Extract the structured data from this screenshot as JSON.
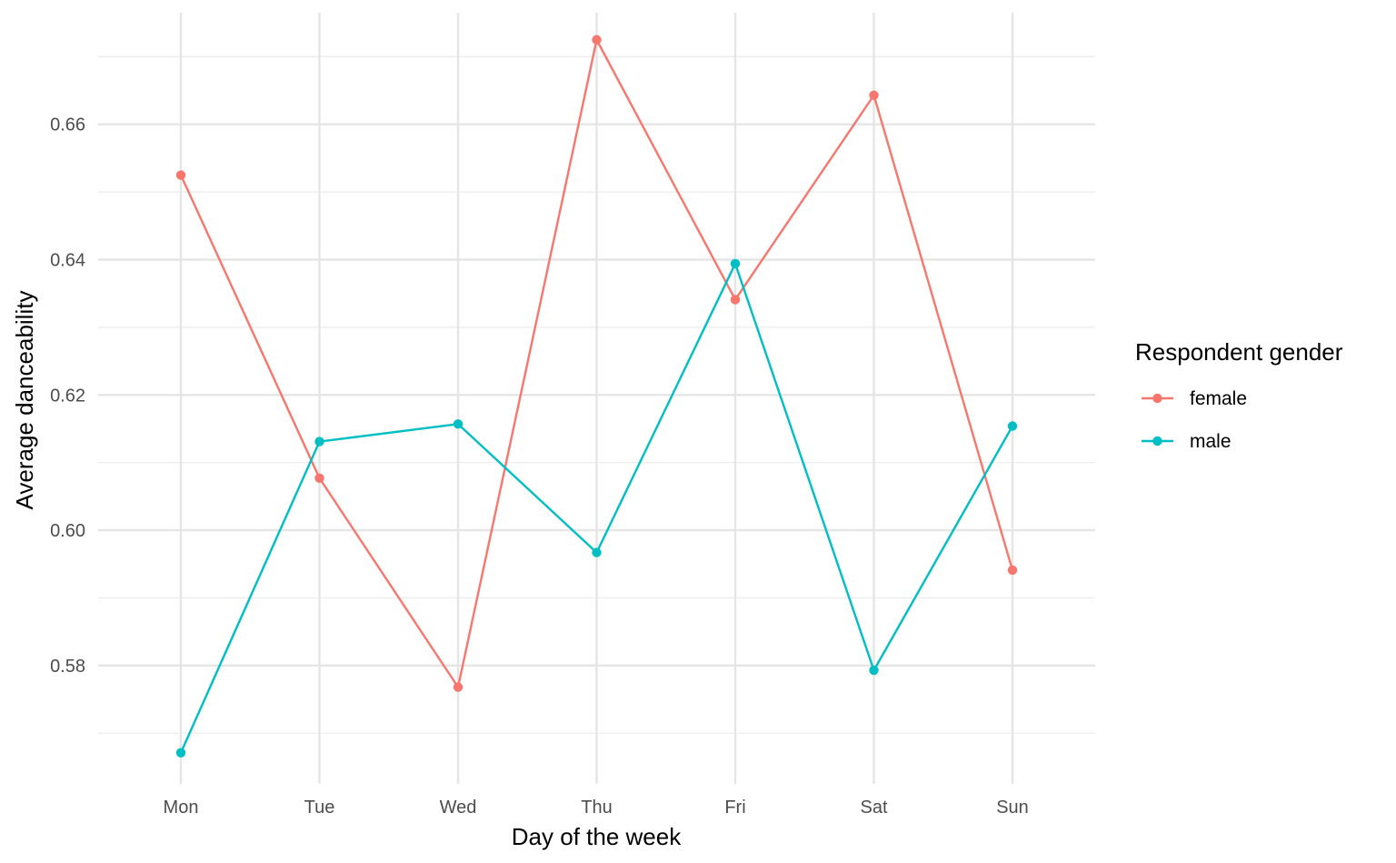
{
  "chart_data": {
    "type": "line",
    "title": "",
    "xlabel": "Day of the week",
    "ylabel": "Average danceability",
    "categories": [
      "Mon",
      "Tue",
      "Wed",
      "Thu",
      "Fri",
      "Sat",
      "Sun"
    ],
    "ylim": [
      0.5625,
      0.6765
    ],
    "y_major_ticks": [
      0.58,
      0.6,
      0.62,
      0.64,
      0.66
    ],
    "y_tick_labels": [
      "0.58",
      "0.60",
      "0.62",
      "0.64",
      "0.66"
    ],
    "y_minor_ticks": [
      0.57,
      0.59,
      0.61,
      0.63,
      0.65,
      0.67
    ],
    "grid": true,
    "legend": {
      "title": "Respondent gender",
      "placement": "right"
    },
    "series": [
      {
        "name": "female",
        "color": "#F8766D",
        "values": [
          0.6525,
          0.6077,
          0.5768,
          0.6725,
          0.6341,
          0.6643,
          0.5941
        ]
      },
      {
        "name": "male",
        "color": "#00BFC4",
        "values": [
          0.5671,
          0.6131,
          0.6157,
          0.5967,
          0.6394,
          0.5793,
          0.6154
        ]
      }
    ]
  }
}
